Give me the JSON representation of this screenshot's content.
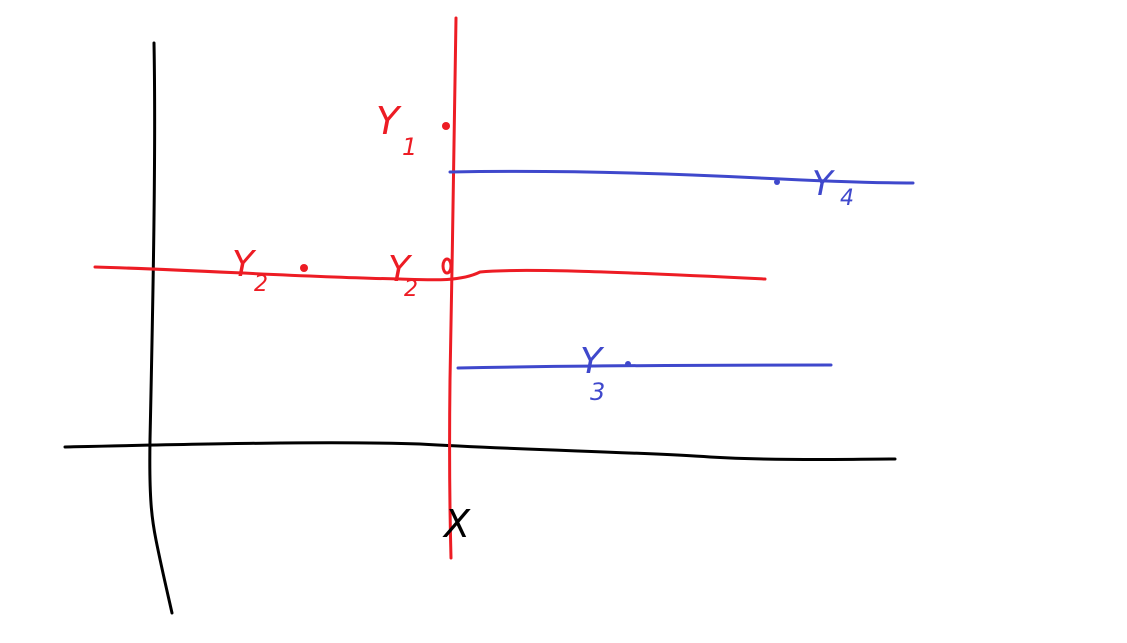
{
  "colors": {
    "axes": "#000000",
    "red": "#ed1c24",
    "blue": "#3f48cc",
    "background": "#ffffff"
  },
  "labels": {
    "x": "X",
    "y1": "Y",
    "y1_sub": "1",
    "y2_left": "Y",
    "y2_left_sub": "2",
    "y2_mid": "Y",
    "y2_mid_sub": "2",
    "y3": "Y",
    "y3_sub": "3",
    "y4": "Y",
    "y4_sub": "4"
  }
}
